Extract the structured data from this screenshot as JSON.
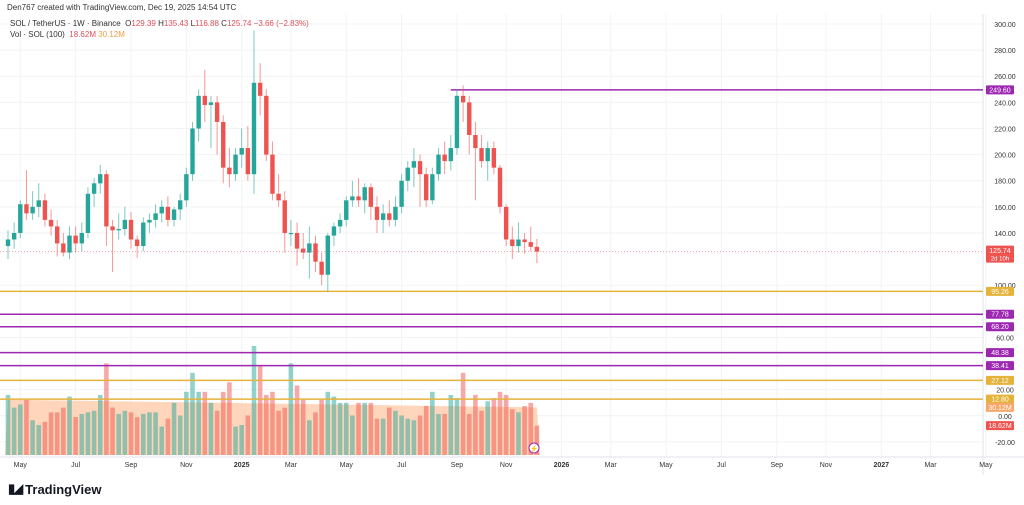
{
  "credit": "Den767 created with TradingView.com, Dec 19, 2025 14:54 UTC",
  "legend": {
    "symbol": "SOL / TetherUS · 1W · Binance",
    "o_label": "O",
    "o": "129.39",
    "h_label": "H",
    "h": "135.43",
    "l_label": "L",
    "l": "116.88",
    "c_label": "C",
    "c": "125.74",
    "change": "−3.66 (−2.83%)",
    "vol_label": "Vol · SOL (100)",
    "vol": "18.62M",
    "vol_ma": "30.12M"
  },
  "logo": "TradingView",
  "colors": {
    "up": "#26a69a",
    "down": "#ef5350",
    "purple": "#9c27b0",
    "gold": "#e5b23a",
    "orange": "#ff9800",
    "volma": "#ffccaa"
  },
  "chart_data": {
    "type": "candlestick",
    "title": "SOL / TetherUS · 1W · Binance",
    "ylim": [
      -30,
      308
    ],
    "y_ticks": [
      "300.00",
      "280.00",
      "260.00",
      "240.00",
      "220.00",
      "200.00",
      "180.00",
      "160.00",
      "140.00",
      "100.00",
      "60.00",
      "20.00",
      "0.00",
      "-20.00"
    ],
    "y_tick_values": [
      300,
      280,
      260,
      240,
      220,
      200,
      180,
      160,
      140,
      100,
      60,
      20,
      0,
      -20
    ],
    "x_ticks": [
      "May",
      "Jul",
      "Sep",
      "Nov",
      "2025",
      "Mar",
      "May",
      "Jul",
      "Sep",
      "Nov",
      "2026",
      "Mar",
      "May",
      "Jul",
      "Sep",
      "Nov",
      "2027",
      "Mar",
      "May"
    ],
    "x_tick_weeks": [
      2,
      11,
      20,
      29,
      38,
      46,
      55,
      64,
      73,
      81,
      90,
      98,
      107,
      116,
      125,
      133,
      142,
      150,
      159
    ],
    "candles": [
      [
        130,
        142,
        120,
        135
      ],
      [
        135,
        148,
        128,
        140
      ],
      [
        140,
        165,
        136,
        162
      ],
      [
        162,
        188,
        150,
        155
      ],
      [
        155,
        172,
        150,
        160
      ],
      [
        160,
        178,
        152,
        165
      ],
      [
        165,
        170,
        145,
        150
      ],
      [
        150,
        158,
        138,
        145
      ],
      [
        145,
        150,
        122,
        132
      ],
      [
        132,
        140,
        122,
        125
      ],
      [
        125,
        145,
        120,
        138
      ],
      [
        138,
        145,
        125,
        132
      ],
      [
        132,
        148,
        126,
        140
      ],
      [
        140,
        175,
        136,
        170
      ],
      [
        170,
        182,
        160,
        178
      ],
      [
        178,
        192,
        170,
        185
      ],
      [
        185,
        188,
        130,
        145
      ],
      [
        145,
        150,
        110,
        142
      ],
      [
        142,
        155,
        135,
        143
      ],
      [
        143,
        160,
        138,
        150
      ],
      [
        150,
        156,
        128,
        135
      ],
      [
        135,
        138,
        121,
        130
      ],
      [
        130,
        152,
        126,
        148
      ],
      [
        148,
        155,
        140,
        150
      ],
      [
        150,
        162,
        144,
        155
      ],
      [
        155,
        165,
        148,
        160
      ],
      [
        160,
        168,
        145,
        150
      ],
      [
        150,
        160,
        145,
        158
      ],
      [
        158,
        170,
        150,
        165
      ],
      [
        165,
        190,
        160,
        185
      ],
      [
        185,
        225,
        180,
        220
      ],
      [
        220,
        250,
        210,
        245
      ],
      [
        245,
        265,
        225,
        238
      ],
      [
        238,
        245,
        205,
        240
      ],
      [
        240,
        245,
        200,
        225
      ],
      [
        225,
        230,
        178,
        190
      ],
      [
        190,
        205,
        175,
        185
      ],
      [
        185,
        205,
        180,
        200
      ],
      [
        200,
        220,
        190,
        205
      ],
      [
        205,
        222,
        180,
        185
      ],
      [
        185,
        295,
        170,
        255
      ],
      [
        255,
        270,
        230,
        245
      ],
      [
        245,
        250,
        195,
        200
      ],
      [
        200,
        210,
        165,
        170
      ],
      [
        170,
        185,
        160,
        165
      ],
      [
        165,
        172,
        125,
        140
      ],
      [
        140,
        150,
        130,
        140
      ],
      [
        140,
        148,
        115,
        128
      ],
      [
        128,
        140,
        120,
        125
      ],
      [
        125,
        145,
        105,
        132
      ],
      [
        132,
        138,
        110,
        118
      ],
      [
        118,
        125,
        100,
        108
      ],
      [
        108,
        140,
        95,
        138
      ],
      [
        138,
        148,
        130,
        145
      ],
      [
        145,
        155,
        140,
        150
      ],
      [
        150,
        168,
        145,
        165
      ],
      [
        165,
        180,
        160,
        168
      ],
      [
        168,
        182,
        160,
        165
      ],
      [
        165,
        178,
        155,
        175
      ],
      [
        175,
        178,
        150,
        160
      ],
      [
        160,
        168,
        140,
        150
      ],
      [
        150,
        162,
        140,
        155
      ],
      [
        155,
        165,
        145,
        150
      ],
      [
        150,
        168,
        145,
        160
      ],
      [
        160,
        185,
        155,
        180
      ],
      [
        180,
        195,
        172,
        190
      ],
      [
        190,
        205,
        175,
        195
      ],
      [
        195,
        200,
        160,
        185
      ],
      [
        185,
        190,
        160,
        165
      ],
      [
        165,
        190,
        162,
        185
      ],
      [
        185,
        205,
        180,
        200
      ],
      [
        200,
        210,
        185,
        195
      ],
      [
        195,
        215,
        188,
        205
      ],
      [
        205,
        250,
        200,
        245
      ],
      [
        245,
        253,
        225,
        240
      ],
      [
        240,
        245,
        200,
        215
      ],
      [
        215,
        225,
        165,
        205
      ],
      [
        205,
        215,
        190,
        195
      ],
      [
        195,
        210,
        180,
        205
      ],
      [
        205,
        210,
        185,
        190
      ],
      [
        190,
        192,
        155,
        160
      ],
      [
        160,
        162,
        130,
        135
      ],
      [
        135,
        145,
        120,
        130
      ],
      [
        130,
        148,
        125,
        135
      ],
      [
        135,
        140,
        124,
        133
      ],
      [
        133,
        145,
        126,
        129.39
      ],
      [
        129.39,
        135.43,
        116.88,
        125.74
      ]
    ],
    "volume_m": [
      38,
      30,
      32,
      35,
      22,
      19,
      21,
      27,
      27,
      30,
      37,
      24,
      26,
      27,
      28,
      38,
      58,
      30,
      26,
      28,
      27,
      24,
      26,
      27,
      27,
      18,
      23,
      33,
      25,
      40,
      52,
      40,
      40,
      33,
      28,
      40,
      46,
      18,
      19,
      25,
      69,
      57,
      38,
      40,
      28,
      30,
      58,
      44,
      35,
      22,
      27,
      35,
      40,
      37,
      33,
      33,
      25,
      33,
      33,
      33,
      23,
      23,
      30,
      28,
      25,
      23,
      22,
      25,
      31,
      40,
      26,
      26,
      38,
      36,
      52,
      26,
      38,
      28,
      34,
      36,
      40,
      38,
      29,
      27,
      31,
      33,
      18.62
    ],
    "volume_ma_m": [
      35,
      30.12
    ],
    "levels": [
      {
        "value": 249.6,
        "label": "249.60",
        "color": "purple",
        "from_week": 72
      },
      {
        "value": 95.26,
        "label": "95.26",
        "color": "gold"
      },
      {
        "value": 77.78,
        "label": "77.78",
        "color": "purple"
      },
      {
        "value": 68.2,
        "label": "68.20",
        "color": "purple"
      },
      {
        "value": 48.38,
        "label": "48.38",
        "color": "purple"
      },
      {
        "value": 38.41,
        "label": "38.41",
        "color": "purple"
      },
      {
        "value": 27.12,
        "label": "27.12",
        "color": "gold"
      },
      {
        "value": 12.8,
        "label": "12.80",
        "color": "gold"
      }
    ],
    "last_price": {
      "value": 125.74,
      "label": "125.74",
      "countdown": "2d 10h"
    },
    "vol_labels": {
      "ma": "30.12M",
      "last": "18.62M"
    }
  }
}
